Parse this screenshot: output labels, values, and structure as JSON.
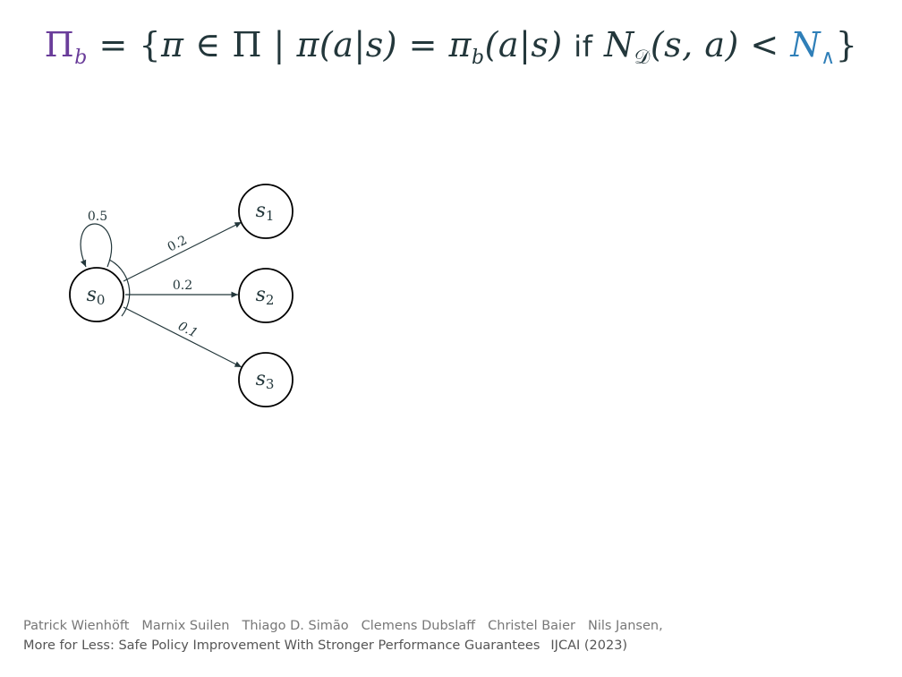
{
  "formula": {
    "pi": "Π",
    "b": "b",
    "eq_open": " = {",
    "pi_small": "π",
    "in": " ∈ ",
    "set": "Π",
    "bar": " | ",
    "lhs": "π(a|s) = π",
    "rhs_b": "b",
    "rhs_args": "(a|s) ",
    "if": "if",
    "n": " N",
    "n_sub": "𝒟",
    "n_args": "(s, a) < ",
    "n_wedge": "N",
    "wedge_sub": "∧",
    "close": "}"
  },
  "diagram": {
    "states": [
      {
        "base": "s",
        "index": "0"
      },
      {
        "base": "s",
        "index": "1"
      },
      {
        "base": "s",
        "index": "2"
      },
      {
        "base": "s",
        "index": "3"
      }
    ],
    "transitions": {
      "self_loop": "0.5",
      "to_s1": "0.2",
      "to_s2": "0.2",
      "to_s3": "0.1"
    }
  },
  "footer": {
    "authors": [
      "Patrick Wienhöft",
      "Marnix Suilen",
      "Thiago D. Simão",
      "Clemens Dubslaff",
      "Christel Baier",
      "Nils Jansen,"
    ],
    "title": "More for Less: Safe Policy Improvement With Stronger Performance Guarantees",
    "venue": "IJCAI (2023)"
  },
  "colors": {
    "text": "#23373b",
    "purple": "#6a3d9a",
    "blue": "#2f7fb8"
  }
}
